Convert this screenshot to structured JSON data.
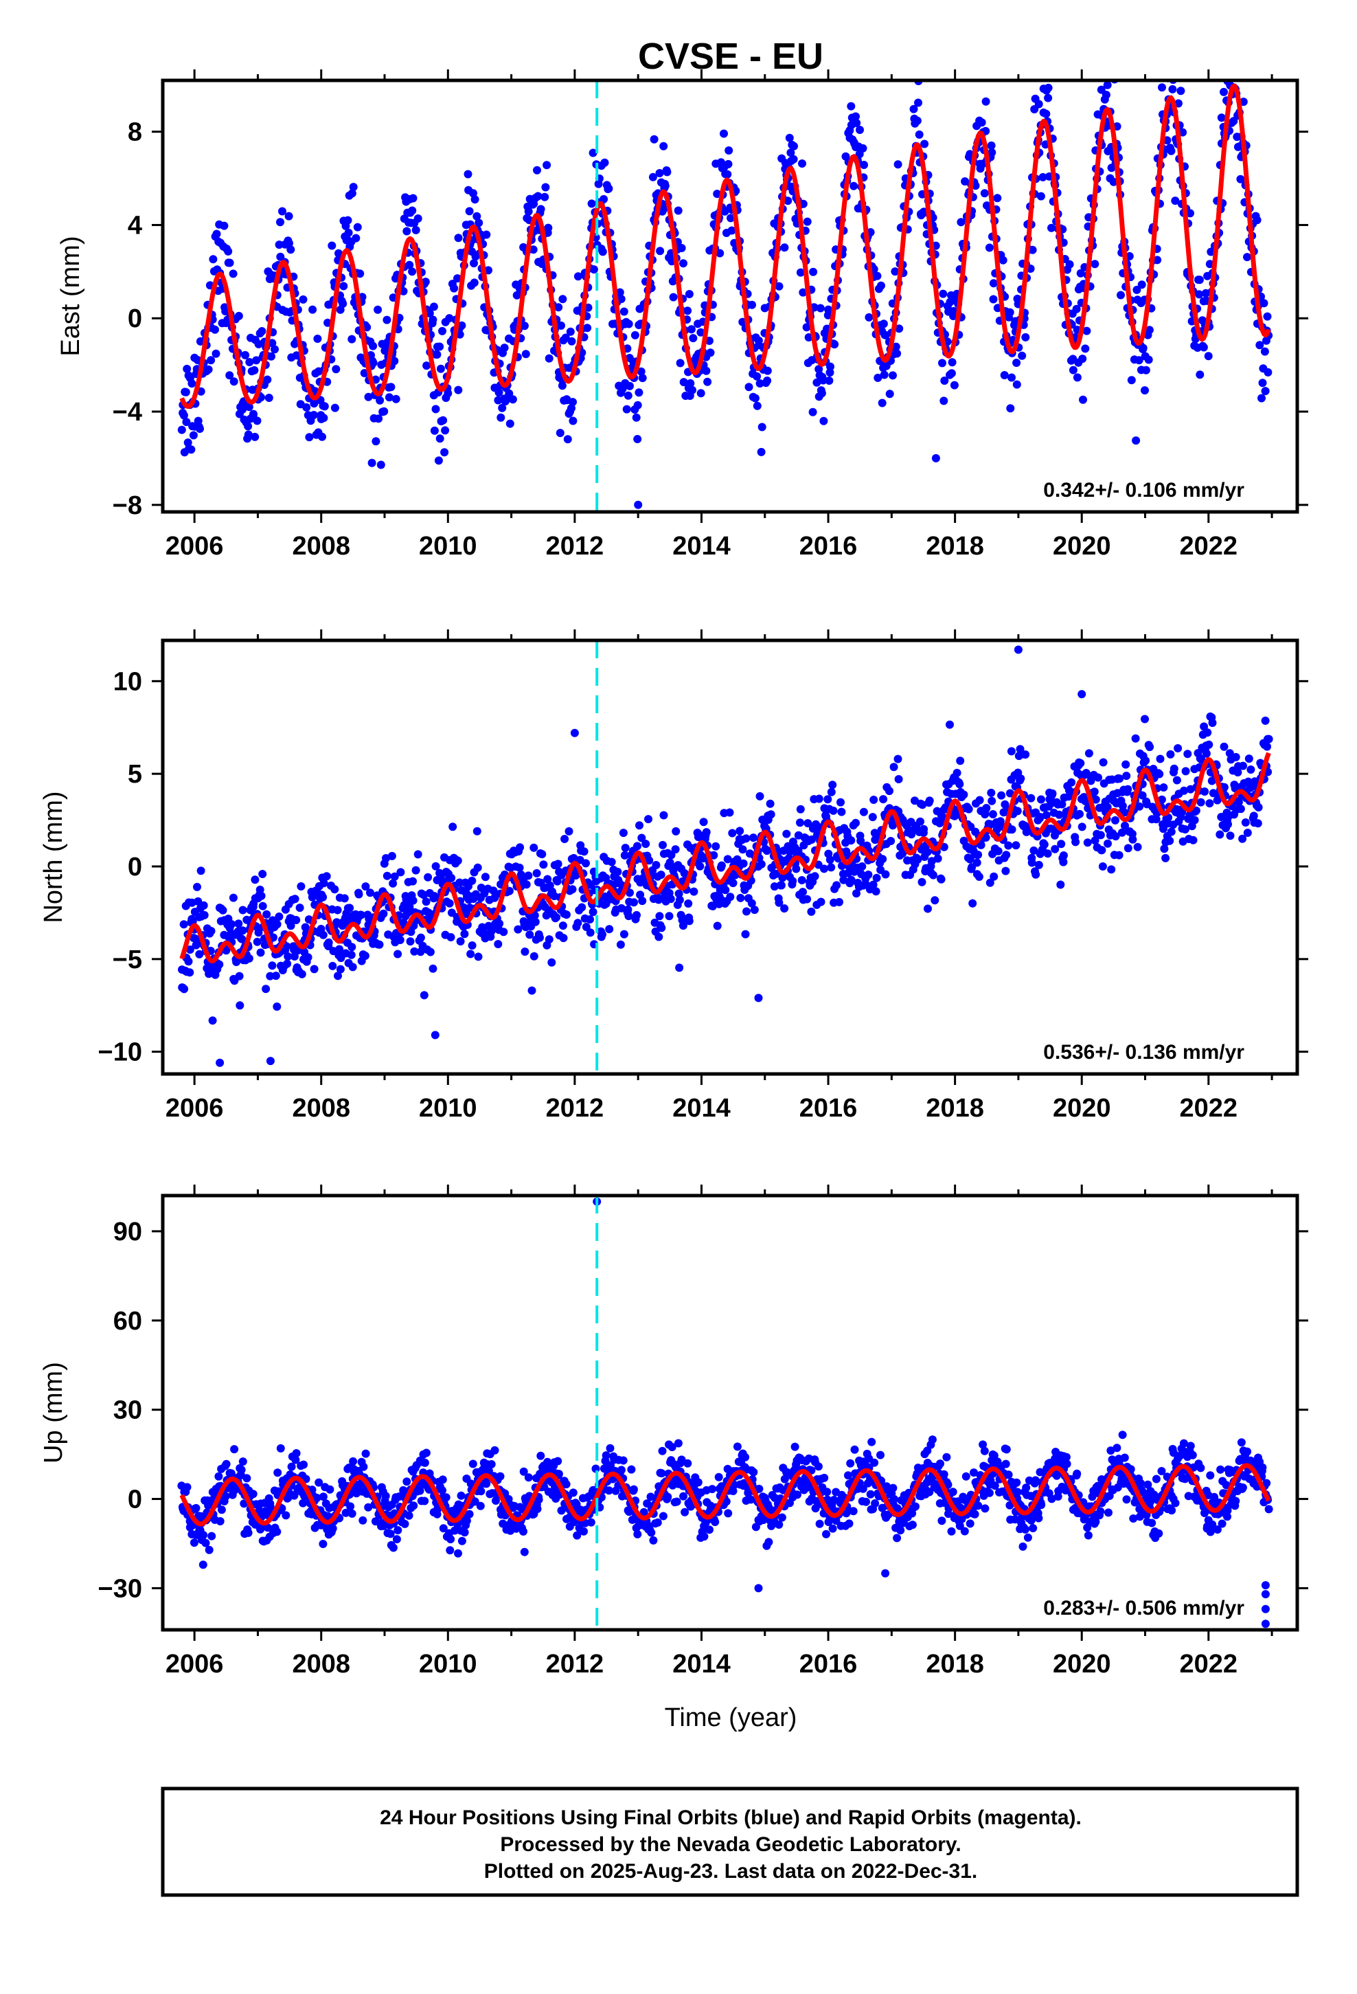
{
  "chart_data": {
    "type": "scatter",
    "title": "CVSE - EU",
    "xlabel": "Time (year)",
    "xlim": [
      2005.5,
      2023.4
    ],
    "xticks": [
      2006,
      2008,
      2010,
      2012,
      2014,
      2016,
      2018,
      2020,
      2022
    ],
    "marker_line_x": 2012.35,
    "colors": {
      "data_points": "#0000ff",
      "model_fit": "#ff0000",
      "marker_line": "#00e5e5",
      "frame": "#000000"
    },
    "panels": [
      {
        "ylabel": "East (mm)",
        "ylim": [
          -8.3,
          10.2
        ],
        "yticks": [
          -8,
          -4,
          0,
          4,
          8
        ],
        "rate_text": "0.342+/- 0.106 mm/yr",
        "model": {
          "offset": -1.3,
          "rate": 0.342,
          "annual_amp": 2.7,
          "annual_amp_growth": 0.06,
          "annual_peak_year_fraction": 0.4,
          "semiannual_amp": 0.2
        },
        "scatter_sigma": 1.3,
        "outliers": [
          {
            "x": 2022.4,
            "y": 9.9
          },
          {
            "x": 2013.0,
            "y": -8.0
          },
          {
            "x": 2017.7,
            "y": -6.0
          },
          {
            "x": 2008.8,
            "y": -6.2
          },
          {
            "x": 2017.1,
            "y": 6.6
          }
        ]
      },
      {
        "ylabel": "North (mm)",
        "ylim": [
          -11.2,
          12.2
        ],
        "yticks": [
          -10,
          -5,
          0,
          5,
          10
        ],
        "rate_text": "0.536+/- 0.136 mm/yr",
        "model": {
          "offset": -4.6,
          "rate": 0.536,
          "annual_amp": 0.6,
          "annual_amp_growth": 0.04,
          "annual_peak_year_fraction": 0.0,
          "semiannual_amp": 0.7
        },
        "scatter_sigma": 1.3,
        "outliers": [
          {
            "x": 2019.0,
            "y": 11.7
          },
          {
            "x": 2012.0,
            "y": 7.2
          },
          {
            "x": 2020.0,
            "y": 9.3
          },
          {
            "x": 2006.4,
            "y": -10.6
          },
          {
            "x": 2007.2,
            "y": -10.5
          },
          {
            "x": 2009.8,
            "y": -9.1
          },
          {
            "x": 2014.9,
            "y": -7.1
          }
        ]
      },
      {
        "ylabel": "Up (mm)",
        "ylim": [
          -44,
          102
        ],
        "yticks": [
          -30,
          0,
          30,
          60,
          90
        ],
        "rate_text": "0.283+/- 0.506 mm/yr",
        "model": {
          "offset": -1.0,
          "rate": 0.283,
          "annual_amp": 7.5,
          "annual_amp_growth": 0.0,
          "annual_peak_year_fraction": 0.6,
          "semiannual_amp": 0.0
        },
        "scatter_sigma": 4.5,
        "outliers": [
          {
            "x": 2012.35,
            "y": 100
          },
          {
            "x": 2022.9,
            "y": -42
          },
          {
            "x": 2022.9,
            "y": -37
          },
          {
            "x": 2022.9,
            "y": -32
          },
          {
            "x": 2022.9,
            "y": -29
          },
          {
            "x": 2014.9,
            "y": -30
          },
          {
            "x": 2016.9,
            "y": -25
          }
        ]
      }
    ],
    "footer_lines": [
      "24 Hour Positions Using Final Orbits (blue) and Rapid Orbits (magenta).",
      "Processed by the Nevada Geodetic Laboratory.",
      "Plotted on 2025-Aug-23. Last data on 2022-Dec-31."
    ]
  }
}
